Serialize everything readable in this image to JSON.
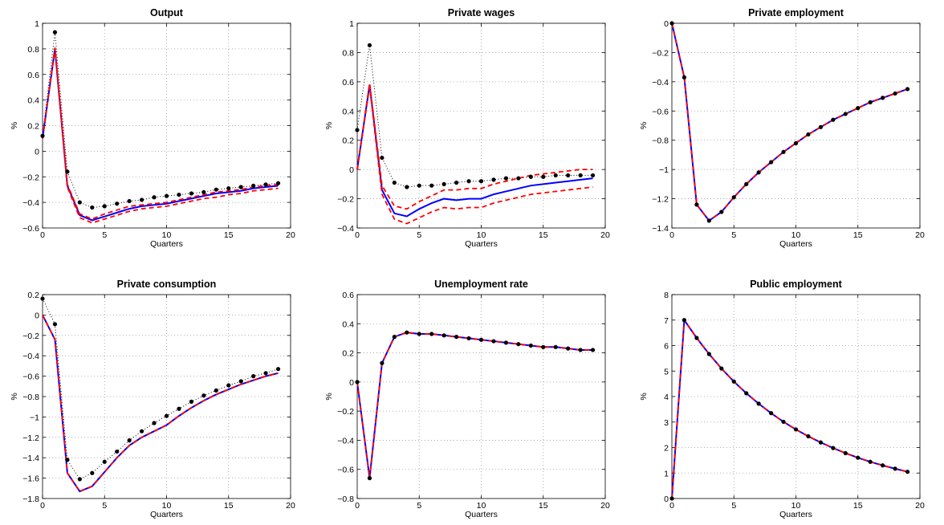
{
  "chart_data": [
    {
      "type": "line",
      "title": "Output",
      "xlabel": "Quarters",
      "ylabel": "%",
      "xlim": [
        0,
        20
      ],
      "ylim": [
        -0.6,
        1
      ],
      "xticks": [
        0,
        5,
        10,
        15,
        20
      ],
      "xtick_labels": [
        "0",
        "5",
        "10",
        "15",
        "20"
      ],
      "yticks": [
        -0.6,
        -0.4,
        -0.2,
        0,
        0.2,
        0.4,
        0.6,
        0.8,
        1
      ],
      "ytick_labels": [
        "−0.6",
        "−0.4",
        "−0.2",
        "0",
        "0.2",
        "0.4",
        "0.6",
        "0.8",
        "1"
      ],
      "grid": true,
      "x": [
        0,
        1,
        2,
        3,
        4,
        5,
        6,
        7,
        8,
        9,
        10,
        11,
        12,
        13,
        14,
        15,
        16,
        17,
        18,
        19
      ],
      "series": [
        {
          "style": "dotted-markers",
          "color": "#000000",
          "values": [
            0.12,
            0.93,
            -0.16,
            -0.4,
            -0.44,
            -0.43,
            -0.41,
            -0.39,
            -0.38,
            -0.36,
            -0.35,
            -0.34,
            -0.33,
            -0.32,
            -0.3,
            -0.29,
            -0.28,
            -0.27,
            -0.26,
            -0.25
          ]
        },
        {
          "style": "solid",
          "color": "#0000ff",
          "values": [
            0.1,
            0.8,
            -0.27,
            -0.5,
            -0.54,
            -0.51,
            -0.48,
            -0.45,
            -0.43,
            -0.42,
            -0.41,
            -0.39,
            -0.37,
            -0.35,
            -0.33,
            -0.32,
            -0.31,
            -0.29,
            -0.28,
            -0.27
          ]
        },
        {
          "style": "dashed",
          "color": "#ff0000",
          "values": [
            0.1,
            0.8,
            -0.26,
            -0.49,
            -0.53,
            -0.49,
            -0.46,
            -0.43,
            -0.42,
            -0.41,
            -0.4,
            -0.38,
            -0.36,
            -0.34,
            -0.32,
            -0.31,
            -0.3,
            -0.28,
            -0.27,
            -0.26
          ]
        },
        {
          "style": "dashed",
          "color": "#ff0000",
          "values": [
            0.1,
            0.81,
            -0.28,
            -0.52,
            -0.56,
            -0.53,
            -0.5,
            -0.47,
            -0.45,
            -0.44,
            -0.43,
            -0.41,
            -0.39,
            -0.37,
            -0.36,
            -0.34,
            -0.33,
            -0.31,
            -0.3,
            -0.29
          ]
        }
      ]
    },
    {
      "type": "line",
      "title": "Private wages",
      "xlabel": "Quarters",
      "ylabel": "%",
      "xlim": [
        0,
        20
      ],
      "ylim": [
        -0.4,
        1
      ],
      "xticks": [
        0,
        5,
        10,
        15,
        20
      ],
      "xtick_labels": [
        "0",
        "5",
        "10",
        "15",
        "20"
      ],
      "yticks": [
        -0.4,
        -0.2,
        0,
        0.2,
        0.4,
        0.6,
        0.8,
        1
      ],
      "ytick_labels": [
        "−0.4",
        "−0.2",
        "0",
        "0.2",
        "0.4",
        "0.6",
        "0.8",
        "1"
      ],
      "grid": true,
      "x": [
        0,
        1,
        2,
        3,
        4,
        5,
        6,
        7,
        8,
        9,
        10,
        11,
        12,
        13,
        14,
        15,
        16,
        17,
        18,
        19
      ],
      "series": [
        {
          "style": "dotted-markers",
          "color": "#000000",
          "values": [
            0.27,
            0.85,
            0.08,
            -0.09,
            -0.12,
            -0.11,
            -0.11,
            -0.1,
            -0.09,
            -0.08,
            -0.08,
            -0.07,
            -0.06,
            -0.06,
            -0.05,
            -0.05,
            -0.04,
            -0.04,
            -0.04,
            -0.04
          ]
        },
        {
          "style": "solid",
          "color": "#0000ff",
          "values": [
            0.0,
            0.58,
            -0.14,
            -0.3,
            -0.32,
            -0.27,
            -0.23,
            -0.2,
            -0.21,
            -0.2,
            -0.2,
            -0.17,
            -0.15,
            -0.13,
            -0.11,
            -0.1,
            -0.09,
            -0.08,
            -0.07,
            -0.06
          ]
        },
        {
          "style": "dashed",
          "color": "#ff0000",
          "values": [
            0.0,
            0.59,
            -0.11,
            -0.25,
            -0.27,
            -0.22,
            -0.18,
            -0.14,
            -0.14,
            -0.13,
            -0.13,
            -0.1,
            -0.08,
            -0.06,
            -0.04,
            -0.03,
            -0.02,
            -0.01,
            0.0,
            0.0
          ]
        },
        {
          "style": "dashed",
          "color": "#ff0000",
          "values": [
            0.0,
            0.57,
            -0.17,
            -0.34,
            -0.37,
            -0.33,
            -0.29,
            -0.26,
            -0.27,
            -0.26,
            -0.26,
            -0.23,
            -0.21,
            -0.19,
            -0.17,
            -0.16,
            -0.15,
            -0.14,
            -0.13,
            -0.12
          ]
        }
      ]
    },
    {
      "type": "line",
      "title": "Private employment",
      "xlabel": "Quarters",
      "ylabel": "%",
      "xlim": [
        0,
        20
      ],
      "ylim": [
        -1.4,
        0
      ],
      "xticks": [
        0,
        5,
        10,
        15,
        20
      ],
      "xtick_labels": [
        "0",
        "5",
        "10",
        "15",
        "20"
      ],
      "yticks": [
        -1.4,
        -1.2,
        -1,
        -0.8,
        -0.6,
        -0.4,
        -0.2,
        0
      ],
      "ytick_labels": [
        "−1.4",
        "−1.2",
        "−1",
        "−0.8",
        "−0.6",
        "−0.4",
        "−0.2",
        "0"
      ],
      "grid": true,
      "x": [
        0,
        1,
        2,
        3,
        4,
        5,
        6,
        7,
        8,
        9,
        10,
        11,
        12,
        13,
        14,
        15,
        16,
        17,
        18,
        19
      ],
      "series": [
        {
          "style": "dotted-markers",
          "color": "#000000",
          "values": [
            0.0,
            -0.37,
            -1.24,
            -1.35,
            -1.29,
            -1.19,
            -1.1,
            -1.02,
            -0.95,
            -0.88,
            -0.82,
            -0.76,
            -0.71,
            -0.66,
            -0.62,
            -0.58,
            -0.54,
            -0.51,
            -0.48,
            -0.45
          ]
        },
        {
          "style": "solid",
          "color": "#0000ff",
          "values": [
            0.0,
            -0.37,
            -1.24,
            -1.35,
            -1.29,
            -1.19,
            -1.1,
            -1.02,
            -0.95,
            -0.88,
            -0.82,
            -0.76,
            -0.71,
            -0.66,
            -0.62,
            -0.58,
            -0.54,
            -0.51,
            -0.48,
            -0.45
          ]
        },
        {
          "style": "dashed",
          "color": "#ff0000",
          "values": [
            0.0,
            -0.37,
            -1.24,
            -1.35,
            -1.29,
            -1.19,
            -1.1,
            -1.02,
            -0.95,
            -0.88,
            -0.82,
            -0.76,
            -0.71,
            -0.66,
            -0.62,
            -0.58,
            -0.54,
            -0.51,
            -0.48,
            -0.45
          ]
        }
      ]
    },
    {
      "type": "line",
      "title": "Private consumption",
      "xlabel": "Quarters",
      "ylabel": "%",
      "xlim": [
        0,
        20
      ],
      "ylim": [
        -1.8,
        0.2
      ],
      "xticks": [
        0,
        5,
        10,
        15,
        20
      ],
      "xtick_labels": [
        "0",
        "5",
        "10",
        "15",
        "20"
      ],
      "yticks": [
        -1.8,
        -1.6,
        -1.4,
        -1.2,
        -1,
        -0.8,
        -0.6,
        -0.4,
        -0.2,
        0,
        0.2
      ],
      "ytick_labels": [
        "−1.8",
        "−1.6",
        "−1.4",
        "−1.2",
        "−1",
        "−0.8",
        "−0.6",
        "−0.4",
        "−0.2",
        "0",
        "0.2"
      ],
      "grid": true,
      "x": [
        0,
        1,
        2,
        3,
        4,
        5,
        6,
        7,
        8,
        9,
        10,
        11,
        12,
        13,
        14,
        15,
        16,
        17,
        18,
        19
      ],
      "series": [
        {
          "style": "dotted-markers",
          "color": "#000000",
          "values": [
            0.16,
            -0.09,
            -1.42,
            -1.61,
            -1.55,
            -1.44,
            -1.34,
            -1.23,
            -1.14,
            -1.06,
            -0.99,
            -0.92,
            -0.85,
            -0.79,
            -0.74,
            -0.69,
            -0.65,
            -0.6,
            -0.57,
            -0.53
          ]
        },
        {
          "style": "solid",
          "color": "#0000ff",
          "values": [
            0.0,
            -0.24,
            -1.55,
            -1.73,
            -1.68,
            -1.54,
            -1.4,
            -1.28,
            -1.2,
            -1.14,
            -1.08,
            -0.99,
            -0.91,
            -0.84,
            -0.78,
            -0.73,
            -0.68,
            -0.64,
            -0.6,
            -0.57
          ]
        },
        {
          "style": "dashed",
          "color": "#ff0000",
          "values": [
            0.0,
            -0.24,
            -1.55,
            -1.73,
            -1.68,
            -1.54,
            -1.4,
            -1.28,
            -1.2,
            -1.14,
            -1.08,
            -0.99,
            -0.91,
            -0.84,
            -0.78,
            -0.73,
            -0.68,
            -0.64,
            -0.6,
            -0.57
          ]
        }
      ]
    },
    {
      "type": "line",
      "title": "Unemployment rate",
      "xlabel": "Quarters",
      "ylabel": "%",
      "xlim": [
        0,
        20
      ],
      "ylim": [
        -0.8,
        0.6
      ],
      "xticks": [
        0,
        5,
        10,
        15,
        20
      ],
      "xtick_labels": [
        "0",
        "5",
        "10",
        "15",
        "20"
      ],
      "yticks": [
        -0.8,
        -0.6,
        -0.4,
        -0.2,
        0,
        0.2,
        0.4,
        0.6
      ],
      "ytick_labels": [
        "−0.8",
        "−0.6",
        "−0.4",
        "−0.2",
        "0",
        "0.2",
        "0.4",
        "0.6"
      ],
      "grid": true,
      "x": [
        0,
        1,
        2,
        3,
        4,
        5,
        6,
        7,
        8,
        9,
        10,
        11,
        12,
        13,
        14,
        15,
        16,
        17,
        18,
        19
      ],
      "series": [
        {
          "style": "dotted-markers",
          "color": "#000000",
          "values": [
            0.0,
            -0.66,
            0.13,
            0.31,
            0.34,
            0.33,
            0.33,
            0.32,
            0.31,
            0.3,
            0.29,
            0.28,
            0.27,
            0.26,
            0.25,
            0.24,
            0.24,
            0.23,
            0.22,
            0.22
          ]
        },
        {
          "style": "solid",
          "color": "#0000ff",
          "values": [
            0.0,
            -0.66,
            0.13,
            0.31,
            0.34,
            0.33,
            0.33,
            0.32,
            0.31,
            0.3,
            0.29,
            0.28,
            0.27,
            0.26,
            0.25,
            0.24,
            0.24,
            0.23,
            0.22,
            0.22
          ]
        },
        {
          "style": "dashed",
          "color": "#ff0000",
          "values": [
            0.0,
            -0.66,
            0.13,
            0.31,
            0.34,
            0.33,
            0.33,
            0.32,
            0.31,
            0.3,
            0.29,
            0.28,
            0.27,
            0.26,
            0.25,
            0.24,
            0.24,
            0.23,
            0.22,
            0.22
          ]
        }
      ]
    },
    {
      "type": "line",
      "title": "Public employment",
      "xlabel": "Quarters",
      "ylabel": "%",
      "xlim": [
        0,
        20
      ],
      "ylim": [
        0,
        8
      ],
      "xticks": [
        0,
        5,
        10,
        15,
        20
      ],
      "xtick_labels": [
        "0",
        "5",
        "10",
        "15",
        "20"
      ],
      "yticks": [
        0,
        1,
        2,
        3,
        4,
        5,
        6,
        7,
        8
      ],
      "ytick_labels": [
        "0",
        "1",
        "2",
        "3",
        "4",
        "5",
        "6",
        "7",
        "8"
      ],
      "grid": true,
      "x": [
        0,
        1,
        2,
        3,
        4,
        5,
        6,
        7,
        8,
        9,
        10,
        11,
        12,
        13,
        14,
        15,
        16,
        17,
        18,
        19
      ],
      "series": [
        {
          "style": "dotted-markers",
          "color": "#000000",
          "values": [
            0.0,
            7.0,
            6.3,
            5.67,
            5.1,
            4.59,
            4.13,
            3.72,
            3.35,
            3.01,
            2.71,
            2.44,
            2.2,
            1.98,
            1.78,
            1.6,
            1.44,
            1.3,
            1.17,
            1.05
          ]
        },
        {
          "style": "solid",
          "color": "#0000ff",
          "values": [
            0.0,
            7.0,
            6.3,
            5.67,
            5.1,
            4.59,
            4.13,
            3.72,
            3.35,
            3.01,
            2.71,
            2.44,
            2.2,
            1.98,
            1.78,
            1.6,
            1.44,
            1.3,
            1.17,
            1.05
          ]
        },
        {
          "style": "dashed",
          "color": "#ff0000",
          "values": [
            0.0,
            7.0,
            6.3,
            5.67,
            5.1,
            4.59,
            4.13,
            3.72,
            3.35,
            3.01,
            2.71,
            2.44,
            2.2,
            1.98,
            1.78,
            1.6,
            1.44,
            1.3,
            1.17,
            1.05
          ]
        }
      ]
    }
  ]
}
